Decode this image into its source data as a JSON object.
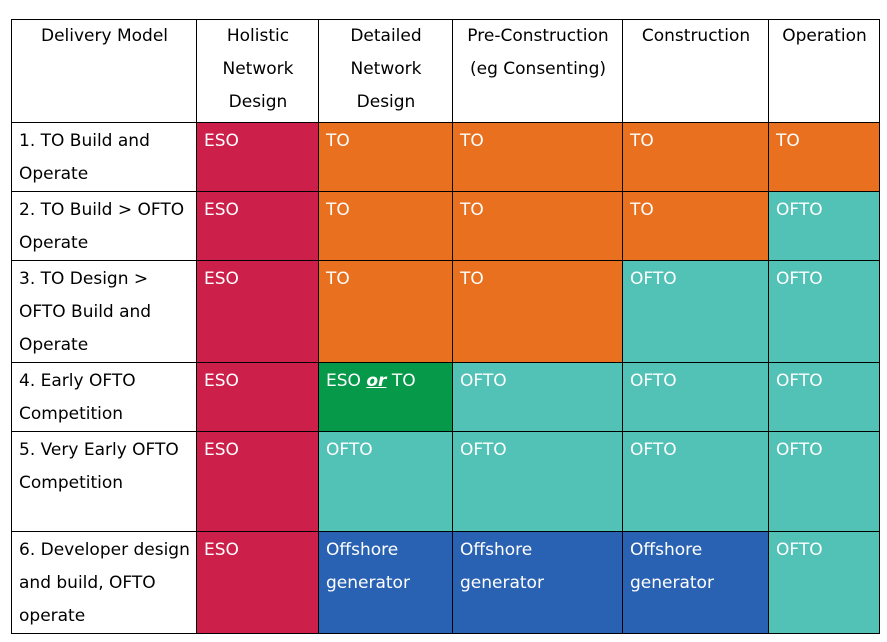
{
  "headers": [
    "Delivery Model",
    "Holistic Network Design",
    "Detailed Network Design",
    "Pre-Construction (eg Consenting)",
    "Construction",
    "Operation"
  ],
  "rows": [
    {
      "label": "1. TO Build and Operate",
      "cells": [
        "ESO",
        "TO",
        "TO",
        "TO",
        "TO"
      ]
    },
    {
      "label": "2. TO Build > OFTO Operate",
      "cells": [
        "ESO",
        "TO",
        "TO",
        "TO",
        "OFTO"
      ]
    },
    {
      "label": "3. TO Design > OFTO Build and Operate",
      "cells": [
        "ESO",
        "TO",
        "TO",
        "OFTO",
        "OFTO"
      ]
    },
    {
      "label": "4. Early OFTO Competition",
      "cells": [
        "ESO",
        "",
        "OFTO",
        "OFTO",
        "OFTO"
      ]
    },
    {
      "label": "5. Very Early OFTO Competition",
      "cells": [
        "ESO",
        "OFTO",
        "OFTO",
        "OFTO",
        "OFTO"
      ]
    },
    {
      "label": "6. Developer design and build, OFTO operate",
      "cells": [
        "ESO",
        "Offshore generator",
        "Offshore generator",
        "Offshore generator",
        "OFTO"
      ]
    }
  ],
  "mixed_cell": {
    "part1": "ESO",
    "part2": "or",
    "part3": "TO"
  },
  "colors": {
    "ESO": "#cc1f4a",
    "TO": "#e8701f",
    "OFTO": "#52c1b6",
    "ESO or TO": "#07994a",
    "Offshore generator": "#2a62b3"
  }
}
